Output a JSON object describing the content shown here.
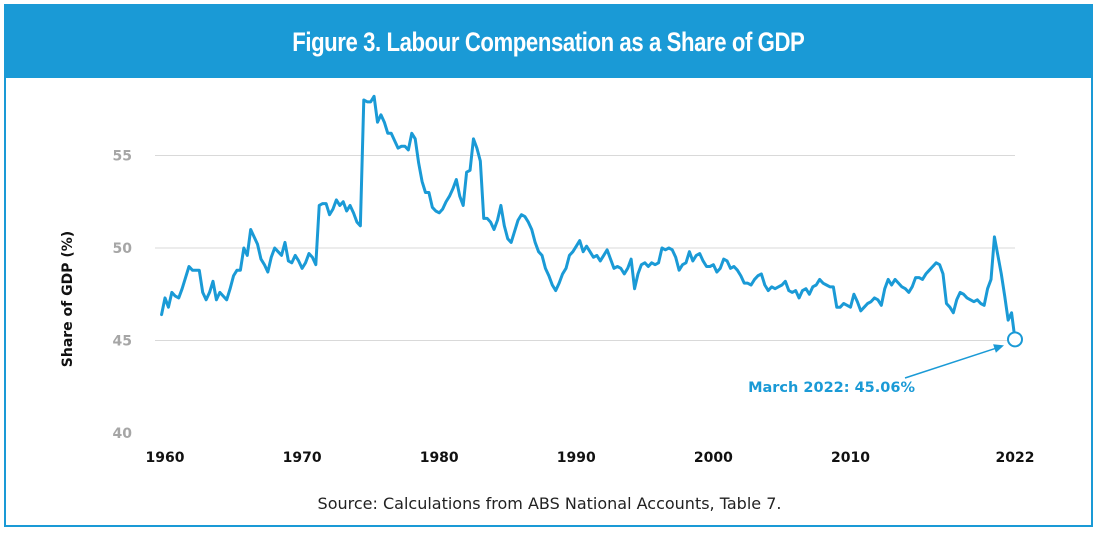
{
  "figure": {
    "title": "Figure 3. Labour Compensation as a Share of GDP",
    "source": "Source: Calculations from ABS National Accounts, Table 7."
  },
  "colors": {
    "accent": "#1a9ad6",
    "line": "#1a9ad6",
    "grid": "#d9d9d9",
    "tick": "#a6a6a6"
  },
  "chart_data": {
    "type": "line",
    "title": "Figure 3. Labour Compensation as a Share of GDP",
    "xlabel": "",
    "ylabel": "Share of GDP (%)",
    "xlim": [
      1960,
      2022
    ],
    "ylim": [
      40,
      58
    ],
    "yticks": [
      40,
      45,
      50,
      55
    ],
    "xticks": [
      {
        "value": 1960,
        "label": "1960"
      },
      {
        "value": 1970,
        "label": "1970"
      },
      {
        "value": 1980,
        "label": "1980"
      },
      {
        "value": 1990,
        "label": "1990"
      },
      {
        "value": 2000,
        "label": "2000"
      },
      {
        "value": 2010,
        "label": "2010"
      },
      {
        "value": 2022,
        "label": "2022"
      }
    ],
    "grid": true,
    "series": [
      {
        "name": "Labour compensation share of GDP",
        "x": [
          1959.75,
          1960.0,
          1960.25,
          1960.5,
          1960.75,
          1961.0,
          1961.25,
          1961.5,
          1961.75,
          1962.0,
          1962.25,
          1962.5,
          1962.75,
          1963.0,
          1963.25,
          1963.5,
          1963.75,
          1964.0,
          1964.25,
          1964.5,
          1964.75,
          1965.0,
          1965.25,
          1965.5,
          1965.75,
          1966.0,
          1966.25,
          1966.5,
          1966.75,
          1967.0,
          1967.25,
          1967.5,
          1967.75,
          1968.0,
          1968.25,
          1968.5,
          1968.75,
          1969.0,
          1969.25,
          1969.5,
          1969.75,
          1970.0,
          1970.25,
          1970.5,
          1970.75,
          1971.0,
          1971.25,
          1971.5,
          1971.75,
          1972.0,
          1972.25,
          1972.5,
          1972.75,
          1973.0,
          1973.25,
          1973.5,
          1973.75,
          1974.0,
          1974.25,
          1974.5,
          1974.75,
          1975.0,
          1975.25,
          1975.5,
          1975.75,
          1976.0,
          1976.25,
          1976.5,
          1976.75,
          1977.0,
          1977.25,
          1977.5,
          1977.75,
          1978.0,
          1978.25,
          1978.5,
          1978.75,
          1979.0,
          1979.25,
          1979.5,
          1979.75,
          1980.0,
          1980.25,
          1980.5,
          1980.75,
          1981.0,
          1981.25,
          1981.5,
          1981.75,
          1982.0,
          1982.25,
          1982.5,
          1982.75,
          1983.0,
          1983.25,
          1983.5,
          1983.75,
          1984.0,
          1984.25,
          1984.5,
          1984.75,
          1985.0,
          1985.25,
          1985.5,
          1985.75,
          1986.0,
          1986.25,
          1986.5,
          1986.75,
          1987.0,
          1987.25,
          1987.5,
          1987.75,
          1988.0,
          1988.25,
          1988.5,
          1988.75,
          1989.0,
          1989.25,
          1989.5,
          1989.75,
          1990.0,
          1990.25,
          1990.5,
          1990.75,
          1991.0,
          1991.25,
          1991.5,
          1991.75,
          1992.0,
          1992.25,
          1992.5,
          1992.75,
          1993.0,
          1993.25,
          1993.5,
          1993.75,
          1994.0,
          1994.25,
          1994.5,
          1994.75,
          1995.0,
          1995.25,
          1995.5,
          1995.75,
          1996.0,
          1996.25,
          1996.5,
          1996.75,
          1997.0,
          1997.25,
          1997.5,
          1997.75,
          1998.0,
          1998.25,
          1998.5,
          1998.75,
          1999.0,
          1999.25,
          1999.5,
          1999.75,
          2000.0,
          2000.25,
          2000.5,
          2000.75,
          2001.0,
          2001.25,
          2001.5,
          2001.75,
          2002.0,
          2002.25,
          2002.5,
          2002.75,
          2003.0,
          2003.25,
          2003.5,
          2003.75,
          2004.0,
          2004.25,
          2004.5,
          2004.75,
          2005.0,
          2005.25,
          2005.5,
          2005.75,
          2006.0,
          2006.25,
          2006.5,
          2006.75,
          2007.0,
          2007.25,
          2007.5,
          2007.75,
          2008.0,
          2008.25,
          2008.5,
          2008.75,
          2009.0,
          2009.25,
          2009.5,
          2009.75,
          2010.0,
          2010.25,
          2010.5,
          2010.75,
          2011.0,
          2011.25,
          2011.5,
          2011.75,
          2012.0,
          2012.25,
          2012.5,
          2012.75,
          2013.0,
          2013.25,
          2013.5,
          2013.75,
          2014.0,
          2014.25,
          2014.5,
          2014.75,
          2015.0,
          2015.25,
          2015.5,
          2015.75,
          2016.0,
          2016.25,
          2016.5,
          2016.75,
          2017.0,
          2017.25,
          2017.5,
          2017.75,
          2018.0,
          2018.25,
          2018.5,
          2018.75,
          2019.0,
          2019.25,
          2019.5,
          2019.75,
          2020.0,
          2020.25,
          2020.5,
          2020.75,
          2021.0,
          2021.25,
          2021.5,
          2021.75,
          2022.0
        ],
        "values": [
          46.4,
          47.3,
          46.8,
          47.6,
          47.4,
          47.3,
          47.8,
          48.4,
          49.0,
          48.8,
          48.8,
          48.8,
          47.6,
          47.2,
          47.6,
          48.2,
          47.2,
          47.6,
          47.4,
          47.2,
          47.8,
          48.5,
          48.8,
          48.8,
          50.0,
          49.6,
          51.0,
          50.6,
          50.2,
          49.4,
          49.1,
          48.7,
          49.5,
          50.0,
          49.8,
          49.6,
          50.3,
          49.3,
          49.2,
          49.6,
          49.3,
          48.9,
          49.2,
          49.7,
          49.5,
          49.1,
          52.3,
          52.4,
          52.4,
          51.8,
          52.1,
          52.6,
          52.3,
          52.5,
          52.0,
          52.3,
          51.9,
          51.4,
          51.2,
          58.0,
          57.9,
          57.9,
          58.2,
          56.8,
          57.2,
          56.8,
          56.2,
          56.2,
          55.8,
          55.4,
          55.5,
          55.5,
          55.3,
          56.2,
          55.9,
          54.6,
          53.6,
          53.0,
          53.0,
          52.2,
          52.0,
          51.9,
          52.1,
          52.5,
          52.8,
          53.2,
          53.7,
          52.8,
          52.3,
          54.1,
          54.2,
          55.9,
          55.4,
          54.7,
          51.6,
          51.6,
          51.4,
          51.0,
          51.5,
          52.3,
          51.2,
          50.5,
          50.3,
          50.9,
          51.5,
          51.8,
          51.7,
          51.4,
          51.0,
          50.3,
          49.8,
          49.6,
          48.9,
          48.5,
          48.0,
          47.7,
          48.1,
          48.6,
          48.9,
          49.6,
          49.8,
          50.1,
          50.4,
          49.8,
          50.1,
          49.8,
          49.5,
          49.6,
          49.3,
          49.6,
          49.9,
          49.4,
          48.9,
          49.0,
          48.9,
          48.6,
          48.9,
          49.4,
          47.8,
          48.6,
          49.1,
          49.2,
          49.0,
          49.2,
          49.1,
          49.2,
          50.0,
          49.9,
          50.0,
          49.9,
          49.5,
          48.8,
          49.1,
          49.2,
          49.8,
          49.3,
          49.6,
          49.7,
          49.3,
          49.0,
          49.0,
          49.1,
          48.7,
          48.9,
          49.4,
          49.3,
          48.9,
          49.0,
          48.8,
          48.5,
          48.1,
          48.1,
          48.0,
          48.3,
          48.5,
          48.6,
          48.0,
          47.7,
          47.9,
          47.8,
          47.9,
          48.0,
          48.2,
          47.7,
          47.6,
          47.7,
          47.3,
          47.7,
          47.8,
          47.5,
          47.9,
          48.0,
          48.3,
          48.1,
          48.0,
          47.9,
          47.9,
          46.8,
          46.8,
          47.0,
          46.9,
          46.8,
          47.5,
          47.1,
          46.6,
          46.8,
          47.0,
          47.1,
          47.3,
          47.2,
          46.9,
          47.8,
          48.3,
          48.0,
          48.3,
          48.1,
          47.9,
          47.8,
          47.6,
          47.9,
          48.4,
          48.4,
          48.3,
          48.6,
          48.8,
          49.0,
          49.2,
          49.1,
          48.6,
          47.0,
          46.8,
          46.5,
          47.2,
          47.6,
          47.5,
          47.3,
          47.2,
          47.1,
          47.2,
          47.0,
          46.9,
          47.8,
          48.3,
          50.6,
          49.6,
          48.6,
          47.4,
          46.1,
          46.5,
          45.06
        ]
      }
    ],
    "annotations": [
      {
        "text": "March 2022: 45.06%",
        "x": 2022.0,
        "y": 45.06
      }
    ]
  }
}
